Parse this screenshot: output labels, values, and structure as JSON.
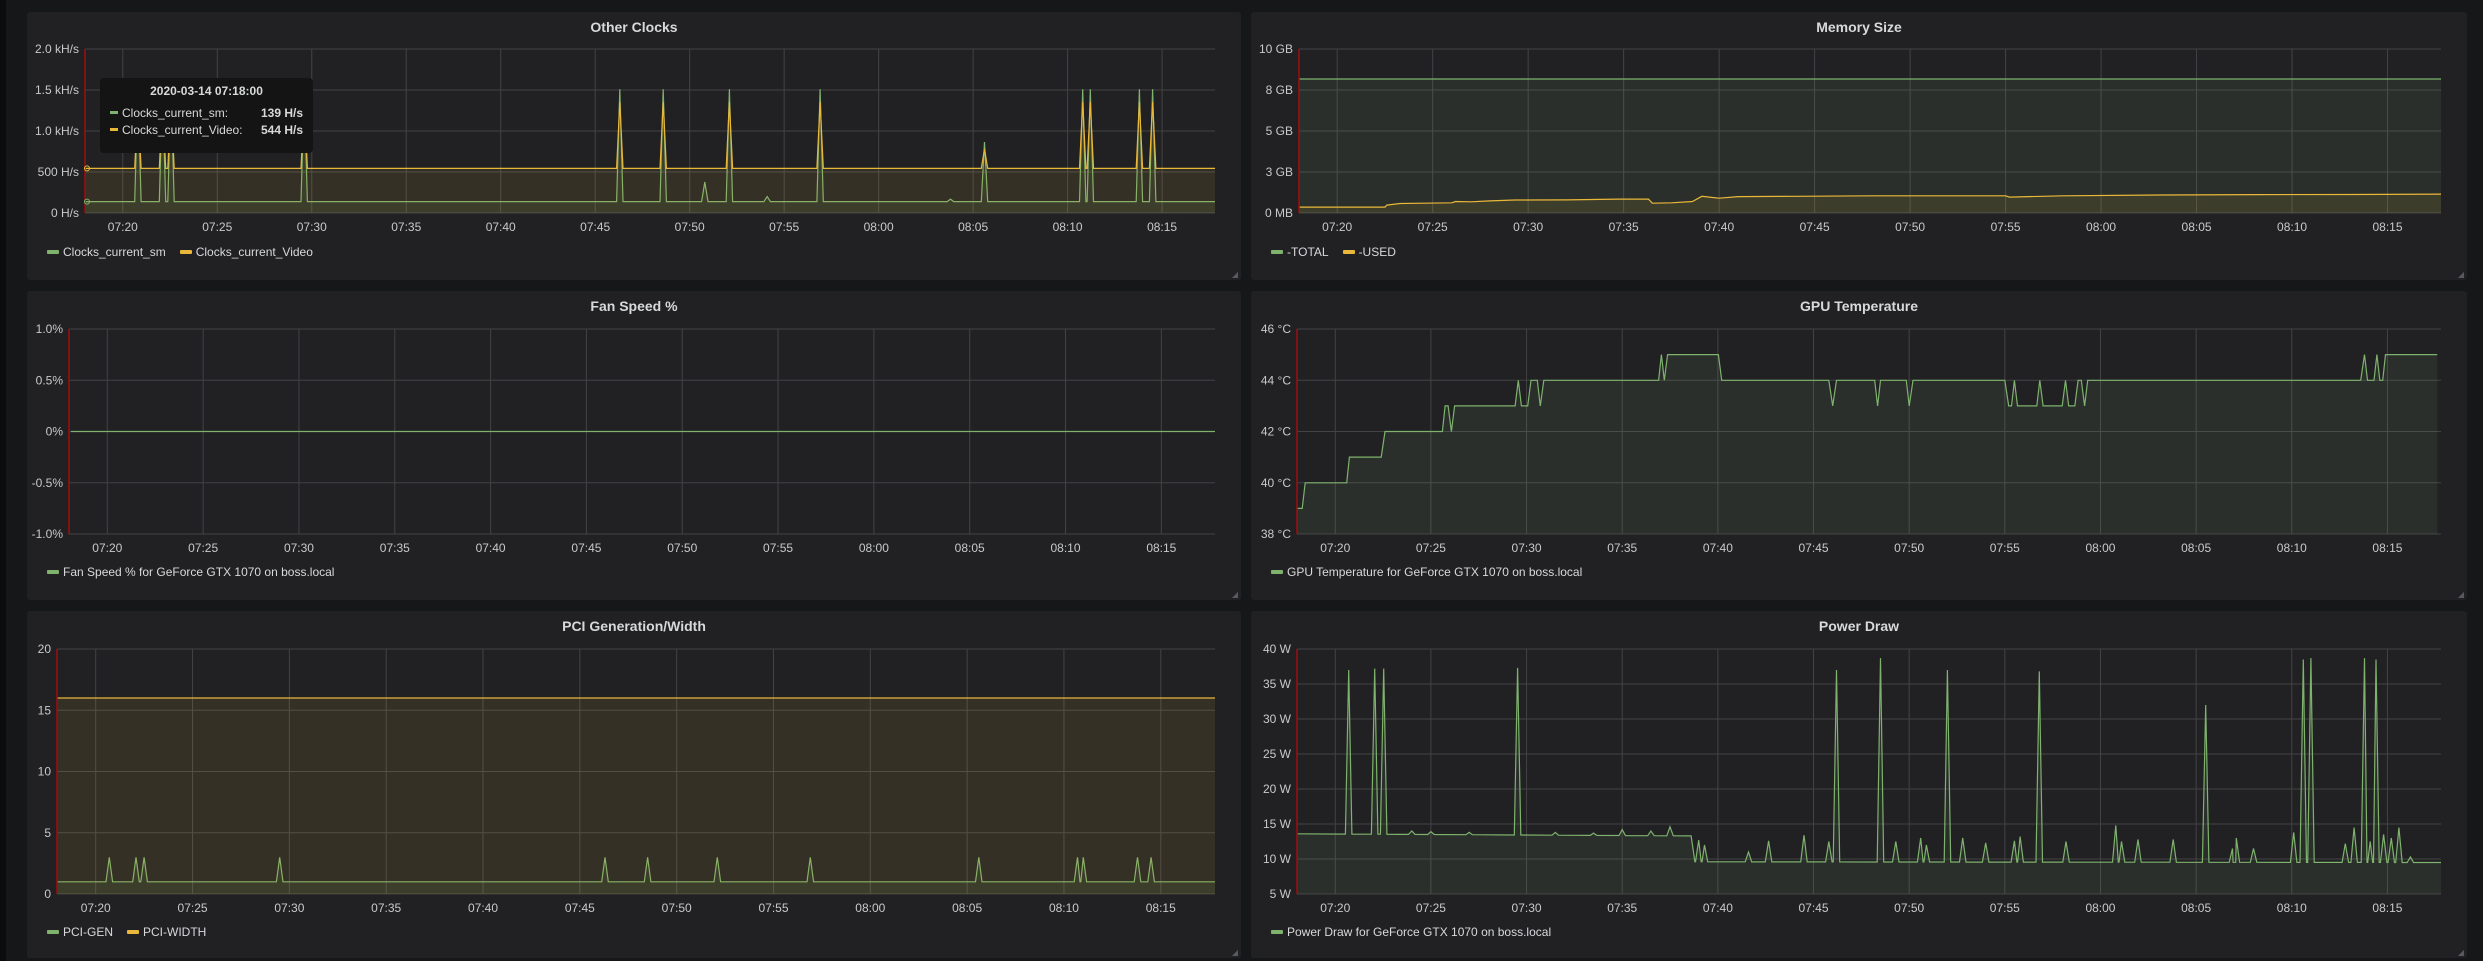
{
  "time_axis": {
    "start": "07:18",
    "span_minutes": 59.8,
    "ticks": [
      "07:20",
      "07:25",
      "07:30",
      "07:35",
      "07:40",
      "07:45",
      "07:50",
      "07:55",
      "08:00",
      "08:05",
      "08:10",
      "08:15"
    ]
  },
  "tooltip": {
    "time": "2020-03-14 07:18:00",
    "rows": [
      {
        "label": "Clocks_current_sm:",
        "value": "139 H/s",
        "color": "#7eb26d"
      },
      {
        "label": "Clocks_current_Video:",
        "value": "544 H/s",
        "color": "#eab839"
      }
    ]
  },
  "chart_data": [
    {
      "type": "line",
      "title": "Other Clocks",
      "y_range": [
        0,
        2000
      ],
      "y_ticks": [
        {
          "value": 0,
          "label": "0 H/s"
        },
        {
          "value": 500,
          "label": "500 H/s"
        },
        {
          "value": 1000,
          "label": "1.0 kH/s"
        },
        {
          "value": 1500,
          "label": "1.5 kH/s"
        },
        {
          "value": 2000,
          "label": "2.0 kH/s"
        }
      ],
      "series": [
        {
          "name": "Clocks_current_sm",
          "color": "#7eb26d",
          "baseline": [
            [
              0,
              139
            ],
            [
              59.8,
              139
            ]
          ],
          "peaks": [
            [
              2.8,
              1510
            ],
            [
              4.1,
              1510
            ],
            [
              4.55,
              1510
            ],
            [
              11.6,
              1510
            ],
            [
              28.3,
              1510
            ],
            [
              30.6,
              1510
            ],
            [
              32.8,
              378
            ],
            [
              34.1,
              1510
            ],
            [
              36.1,
              200
            ],
            [
              38.9,
              1510
            ],
            [
              45.8,
              170
            ],
            [
              47.6,
              866
            ],
            [
              52.8,
              1510
            ],
            [
              53.2,
              1510
            ],
            [
              55.8,
              1510
            ],
            [
              56.5,
              1510
            ]
          ]
        },
        {
          "name": "Clocks_current_Video",
          "color": "#eab839",
          "baseline": [
            [
              0,
              544
            ],
            [
              59.8,
              544
            ]
          ],
          "peaks": [
            [
              2.8,
              1354
            ],
            [
              4.1,
              1354
            ],
            [
              4.55,
              1354
            ],
            [
              11.6,
              1354
            ],
            [
              28.3,
              1354
            ],
            [
              30.6,
              1354
            ],
            [
              34.1,
              1354
            ],
            [
              38.9,
              1354
            ],
            [
              47.6,
              780
            ],
            [
              52.8,
              1354
            ],
            [
              53.2,
              1354
            ],
            [
              55.8,
              1354
            ],
            [
              56.5,
              1354
            ]
          ]
        }
      ]
    },
    {
      "type": "line",
      "title": "Memory Size",
      "y_range": [
        0,
        10
      ],
      "y_ticks": [
        {
          "value": 0,
          "label": "0 MB"
        },
        {
          "value": 2.5,
          "label": "3 GB"
        },
        {
          "value": 5,
          "label": "5 GB"
        },
        {
          "value": 7.5,
          "label": "8 GB"
        },
        {
          "value": 10,
          "label": "10 GB"
        }
      ],
      "series": [
        {
          "name": "-TOTAL",
          "color": "#7eb26d",
          "points": [
            [
              0,
              8.17
            ],
            [
              59.8,
              8.17
            ]
          ]
        },
        {
          "name": "-USED",
          "color": "#eab839",
          "points": [
            [
              0,
              0.36
            ],
            [
              4.5,
              0.36
            ],
            [
              4.6,
              0.48
            ],
            [
              5.3,
              0.58
            ],
            [
              6.5,
              0.6
            ],
            [
              8.0,
              0.62
            ],
            [
              8.2,
              0.7
            ],
            [
              9.0,
              0.68
            ],
            [
              10,
              0.74
            ],
            [
              11.3,
              0.79
            ],
            [
              14,
              0.8
            ],
            [
              16.7,
              0.85
            ],
            [
              18.3,
              0.85
            ],
            [
              18.5,
              0.6
            ],
            [
              19.5,
              0.62
            ],
            [
              20.6,
              0.7
            ],
            [
              21.1,
              1.02
            ],
            [
              21.6,
              0.95
            ],
            [
              22.0,
              0.9
            ],
            [
              23.0,
              1.0
            ],
            [
              26,
              1.02
            ],
            [
              30,
              1.05
            ],
            [
              34,
              1.05
            ],
            [
              37.0,
              1.05
            ],
            [
              37.2,
              0.97
            ],
            [
              40,
              1.05
            ],
            [
              45,
              1.1
            ],
            [
              50,
              1.12
            ],
            [
              55,
              1.13
            ],
            [
              59.8,
              1.15
            ]
          ]
        }
      ]
    },
    {
      "type": "line",
      "title": "Fan Speed %",
      "y_range": [
        -1,
        1
      ],
      "y_ticks": [
        {
          "value": -1,
          "label": "-1.0%"
        },
        {
          "value": -0.5,
          "label": "-0.5%"
        },
        {
          "value": 0,
          "label": "0%"
        },
        {
          "value": 0.5,
          "label": "0.5%"
        },
        {
          "value": 1,
          "label": "1.0%"
        }
      ],
      "series": [
        {
          "name": "Fan Speed % for GeForce GTX 1070 on boss.local",
          "color": "#7eb26d",
          "nofill": true,
          "points": [
            [
              0.1,
              0
            ],
            [
              59.8,
              0
            ]
          ]
        }
      ]
    },
    {
      "type": "line",
      "title": "GPU Temperature",
      "y_range": [
        38,
        46
      ],
      "y_ticks": [
        {
          "value": 38,
          "label": "38 °C"
        },
        {
          "value": 40,
          "label": "40 °C"
        },
        {
          "value": 42,
          "label": "42 °C"
        },
        {
          "value": 44,
          "label": "44 °C"
        },
        {
          "value": 46,
          "label": "46 °C"
        }
      ],
      "series": [
        {
          "name": "GPU Temperature for GeForce GTX 1070 on boss.local",
          "color": "#7eb26d",
          "points": [
            [
              0,
              39
            ],
            [
              0.27,
              39
            ],
            [
              0.43,
              40
            ],
            [
              2.6,
              40
            ],
            [
              2.74,
              41
            ],
            [
              4.4,
              41
            ],
            [
              4.6,
              42
            ],
            [
              7.6,
              42
            ],
            [
              7.74,
              43
            ],
            [
              7.9,
              43
            ],
            [
              8.07,
              42
            ],
            [
              8.24,
              43
            ],
            [
              11.4,
              43
            ],
            [
              11.57,
              44
            ],
            [
              11.73,
              43
            ],
            [
              12.06,
              43
            ],
            [
              12.23,
              44
            ],
            [
              12.56,
              44
            ],
            [
              12.72,
              43
            ],
            [
              12.9,
              44
            ],
            [
              18.9,
              44
            ],
            [
              19.05,
              45
            ],
            [
              19.2,
              44
            ],
            [
              19.37,
              45
            ],
            [
              22.03,
              45
            ],
            [
              22.2,
              44
            ],
            [
              27.8,
              44
            ],
            [
              28.0,
              43
            ],
            [
              28.2,
              44
            ],
            [
              30.2,
              44
            ],
            [
              30.35,
              43
            ],
            [
              30.5,
              44
            ],
            [
              31.85,
              44
            ],
            [
              32.0,
              43
            ],
            [
              32.2,
              44
            ],
            [
              37.0,
              44
            ],
            [
              37.2,
              43
            ],
            [
              37.35,
              43
            ],
            [
              37.5,
              44
            ],
            [
              37.66,
              43
            ],
            [
              38.67,
              43
            ],
            [
              38.83,
              44
            ],
            [
              39.0,
              43
            ],
            [
              40.0,
              43
            ],
            [
              40.17,
              44
            ],
            [
              40.34,
              43
            ],
            [
              40.66,
              43
            ],
            [
              40.83,
              44
            ],
            [
              41.0,
              44
            ],
            [
              41.17,
              43
            ],
            [
              41.33,
              44
            ],
            [
              55.6,
              44
            ],
            [
              55.8,
              45
            ],
            [
              55.96,
              44
            ],
            [
              56.3,
              44
            ],
            [
              56.45,
              45
            ],
            [
              56.6,
              44
            ],
            [
              56.75,
              44
            ],
            [
              56.9,
              45
            ],
            [
              59.6,
              45
            ]
          ]
        }
      ]
    },
    {
      "type": "line",
      "title": "PCI Generation/Width",
      "y_range": [
        0,
        20
      ],
      "y_ticks": [
        {
          "value": 0,
          "label": "0"
        },
        {
          "value": 5,
          "label": "5"
        },
        {
          "value": 10,
          "label": "10"
        },
        {
          "value": 15,
          "label": "15"
        },
        {
          "value": 20,
          "label": "20"
        }
      ],
      "series": [
        {
          "name": "PCI-GEN",
          "color": "#7eb26d",
          "baseline": [
            [
              0,
              1
            ],
            [
              59.8,
              1
            ]
          ],
          "peaks": [
            [
              2.7,
              3
            ],
            [
              4.08,
              3
            ],
            [
              4.5,
              3
            ],
            [
              11.5,
              3
            ],
            [
              28.3,
              3
            ],
            [
              30.5,
              3
            ],
            [
              34.1,
              3
            ],
            [
              38.9,
              3
            ],
            [
              47.6,
              3
            ],
            [
              52.7,
              3
            ],
            [
              53.0,
              3
            ],
            [
              55.8,
              3
            ],
            [
              56.5,
              3
            ]
          ]
        },
        {
          "name": "PCI-WIDTH",
          "color": "#eab839",
          "points": [
            [
              0,
              16
            ],
            [
              59.8,
              16
            ]
          ]
        }
      ]
    },
    {
      "type": "line",
      "title": "Power Draw",
      "y_range": [
        5,
        40
      ],
      "y_ticks": [
        {
          "value": 5,
          "label": "5 W"
        },
        {
          "value": 10,
          "label": "10 W"
        },
        {
          "value": 15,
          "label": "15 W"
        },
        {
          "value": 20,
          "label": "20 W"
        },
        {
          "value": 25,
          "label": "25 W"
        },
        {
          "value": 30,
          "label": "30 W"
        },
        {
          "value": 35,
          "label": "35 W"
        },
        {
          "value": 40,
          "label": "40 W"
        }
      ],
      "series": [
        {
          "name": "Power Draw for GeForce GTX 1070 on boss.local",
          "color": "#7eb26d",
          "baseline": [
            [
              0,
              13.6
            ],
            [
              20.6,
              13.3
            ],
            [
              20.8,
              9.6
            ],
            [
              59.8,
              9.5
            ]
          ],
          "peaks": [
            [
              2.7,
              37
            ],
            [
              4.06,
              37.2
            ],
            [
              4.53,
              37.2
            ],
            [
              6.0,
              14
            ],
            [
              7.0,
              13.9
            ],
            [
              9.0,
              13.8
            ],
            [
              11.53,
              37.3
            ],
            [
              13.5,
              13.8
            ],
            [
              15.5,
              13.7
            ],
            [
              17.0,
              14.2
            ],
            [
              18.5,
              14
            ],
            [
              19.5,
              14.6
            ],
            [
              21.0,
              12.7
            ],
            [
              21.3,
              12
            ],
            [
              23.6,
              11
            ],
            [
              24.65,
              12.6
            ],
            [
              26.5,
              13.4
            ],
            [
              27.8,
              12.5
            ],
            [
              28.2,
              37
            ],
            [
              30.5,
              38.7
            ],
            [
              31.3,
              12.5
            ],
            [
              32.6,
              13
            ],
            [
              32.9,
              12
            ],
            [
              34.0,
              37
            ],
            [
              34.8,
              13
            ],
            [
              36.0,
              12.3
            ],
            [
              37.5,
              12.6
            ],
            [
              37.8,
              13.2
            ],
            [
              38.8,
              36.8
            ],
            [
              40.2,
              12.5
            ],
            [
              42.8,
              14.8
            ],
            [
              43.1,
              12.5
            ],
            [
              43.96,
              12.8
            ],
            [
              45.8,
              12.8
            ],
            [
              47.5,
              32
            ],
            [
              48.9,
              11.5
            ],
            [
              49.1,
              13
            ],
            [
              50.0,
              11.5
            ],
            [
              52.1,
              13.8
            ],
            [
              52.6,
              38.5
            ],
            [
              53.0,
              38.7
            ],
            [
              54.8,
              12.2
            ],
            [
              55.26,
              14.5
            ],
            [
              55.8,
              38.7
            ],
            [
              56.1,
              12.5
            ],
            [
              56.4,
              38.5
            ],
            [
              56.8,
              13.5
            ],
            [
              57.2,
              13
            ],
            [
              57.6,
              14.5
            ],
            [
              58.2,
              10.3
            ]
          ]
        }
      ]
    }
  ]
}
